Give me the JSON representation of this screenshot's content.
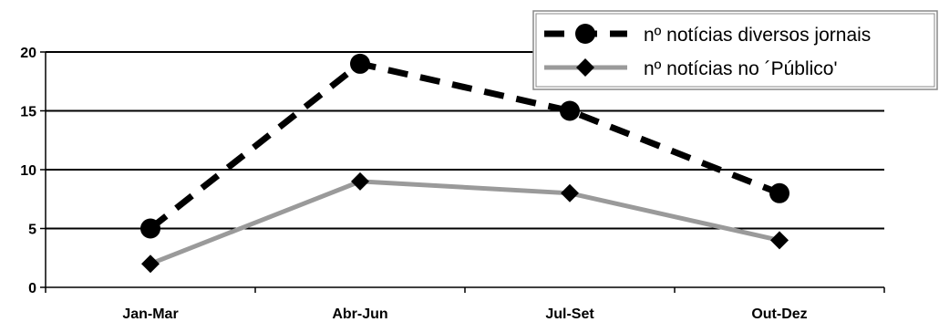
{
  "chart_data": {
    "type": "line",
    "title": "",
    "xlabel": "",
    "ylabel": "",
    "categories": [
      "Jan-Mar",
      "Abr-Jun",
      "Jul-Set",
      "Out-Dez"
    ],
    "ylim": [
      0,
      20
    ],
    "yticks": [
      0,
      5,
      10,
      15,
      20
    ],
    "grid": true,
    "legend_position": "top-right",
    "series": [
      {
        "name": "nº notícias diversos jornais",
        "values": [
          5,
          19,
          15,
          8
        ],
        "line_style": "dashed",
        "marker": "circle",
        "color": "#000000"
      },
      {
        "name": "nº notícias no ´Público'",
        "values": [
          2,
          9,
          8,
          4
        ],
        "line_style": "solid-gray",
        "marker": "diamond",
        "color": "#9a9a9a"
      }
    ]
  }
}
